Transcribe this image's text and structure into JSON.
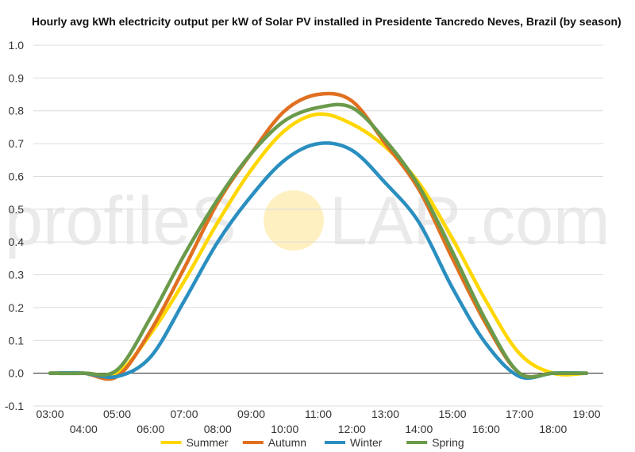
{
  "watermark": {
    "left": "profileS",
    "right": "LAR.com"
  },
  "chart_data": {
    "type": "line",
    "title": "Hourly avg kWh electricity output per kW of Solar PV installed in Presidente Tancredo Neves, Brazil (by season)",
    "xlabel": "",
    "ylabel": "",
    "ylim": [
      -0.1,
      1.0
    ],
    "yticks": [
      "-0.1",
      "0.0",
      "0.1",
      "0.2",
      "0.3",
      "0.4",
      "0.5",
      "0.6",
      "0.7",
      "0.8",
      "0.9",
      "1.0"
    ],
    "categories": [
      "03:00",
      "04:00",
      "05:00",
      "06:00",
      "07:00",
      "08:00",
      "09:00",
      "10:00",
      "11:00",
      "12:00",
      "13:00",
      "14:00",
      "15:00",
      "16:00",
      "17:00",
      "18:00",
      "19:00"
    ],
    "grid": true,
    "legend_position": "bottom",
    "series": [
      {
        "name": "Summer",
        "color": "#FFD700",
        "values": [
          0.0,
          0.0,
          0.0,
          0.12,
          0.28,
          0.46,
          0.62,
          0.74,
          0.79,
          0.76,
          0.69,
          0.58,
          0.41,
          0.22,
          0.06,
          0.0,
          0.0
        ]
      },
      {
        "name": "Autumn",
        "color": "#E07020",
        "values": [
          0.0,
          0.0,
          -0.01,
          0.13,
          0.32,
          0.52,
          0.67,
          0.8,
          0.85,
          0.83,
          0.7,
          0.56,
          0.35,
          0.15,
          0.0,
          0.0,
          0.0
        ]
      },
      {
        "name": "Winter",
        "color": "#2A8FC0",
        "values": [
          0.0,
          0.0,
          -0.01,
          0.05,
          0.22,
          0.4,
          0.54,
          0.65,
          0.7,
          0.68,
          0.58,
          0.46,
          0.26,
          0.09,
          -0.01,
          0.0,
          0.0
        ]
      },
      {
        "name": "Spring",
        "color": "#6A9A4A",
        "values": [
          0.0,
          0.0,
          0.01,
          0.17,
          0.36,
          0.53,
          0.67,
          0.77,
          0.81,
          0.81,
          0.71,
          0.57,
          0.37,
          0.16,
          0.0,
          0.0,
          0.0
        ]
      }
    ]
  }
}
